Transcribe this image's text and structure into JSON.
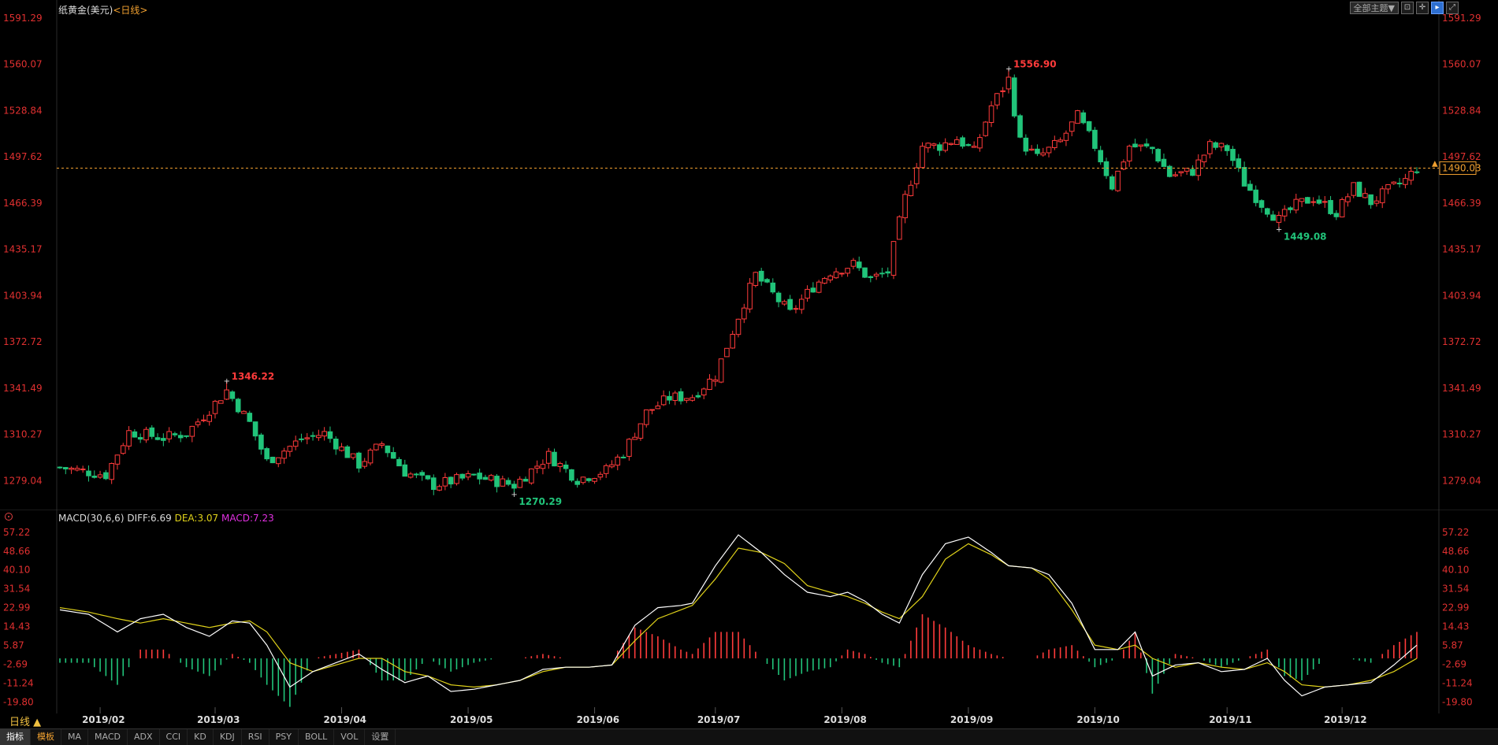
{
  "header": {
    "title": "纸黄金(美元)",
    "period": "<日线>",
    "theme_button": "全部主题▼",
    "icons": [
      "fit-icon",
      "crosshair-icon",
      "cursor-icon",
      "fullscreen-icon"
    ]
  },
  "colors": {
    "up": "#ff3b3b",
    "down": "#21c47a",
    "axis_price": "#e03030",
    "dif": "#ffffff",
    "dea": "#e0d21a",
    "ref_line": "#f0a030",
    "bg": "#000000"
  },
  "macd": {
    "label": "MACD(30,6,6)",
    "diff": "DIFF:6.69",
    "dea": "DEA:3.07",
    "macd": "MACD:7.23"
  },
  "period_toggle": "日线 ▲",
  "bottom_tabs": [
    "指标",
    "模板",
    "MA",
    "MACD",
    "ADX",
    "CCI",
    "KD",
    "KDJ",
    "RSI",
    "PSY",
    "BOLL",
    "VOL",
    "设置"
  ],
  "chart_data": [
    {
      "type": "candlestick",
      "title": "纸黄金(美元)",
      "ylim": [
        1259.0,
        1591.29
      ],
      "y_ticks": [
        "1591.29",
        "1560.07",
        "1528.84",
        "1497.62",
        "1466.39",
        "1435.17",
        "1403.94",
        "1372.72",
        "1341.49",
        "1310.27",
        "1279.04"
      ],
      "x_ticks": [
        "2019/02",
        "2019/03",
        "2019/04",
        "2019/05",
        "2019/06",
        "2019/07",
        "2019/08",
        "2019/09",
        "2019/10",
        "2019/11",
        "2019/12"
      ],
      "x_tick_positions": [
        7,
        27,
        49,
        71,
        93,
        114,
        136,
        158,
        180,
        203,
        223
      ],
      "annotations": [
        {
          "label": "1346.22",
          "index": 29,
          "value": 1346.22,
          "kind": "high"
        },
        {
          "label": "1270.29",
          "index": 79,
          "value": 1270.29,
          "kind": "low"
        },
        {
          "label": "1556.90",
          "index": 165,
          "value": 1556.9,
          "kind": "high"
        },
        {
          "label": "1449.08",
          "index": 212,
          "value": 1449.08,
          "kind": "low"
        }
      ],
      "last_price": "1490.03",
      "reference_line": 1490.03,
      "key_points": [
        [
          0,
          1288
        ],
        [
          8,
          1283
        ],
        [
          12,
          1312
        ],
        [
          18,
          1308
        ],
        [
          22,
          1311
        ],
        [
          26,
          1327
        ],
        [
          29,
          1340
        ],
        [
          33,
          1318
        ],
        [
          36,
          1292
        ],
        [
          42,
          1307
        ],
        [
          46,
          1311
        ],
        [
          52,
          1290
        ],
        [
          56,
          1304
        ],
        [
          60,
          1285
        ],
        [
          65,
          1276
        ],
        [
          72,
          1282
        ],
        [
          79,
          1276
        ],
        [
          85,
          1296
        ],
        [
          90,
          1280
        ],
        [
          95,
          1286
        ],
        [
          98,
          1298
        ],
        [
          102,
          1325
        ],
        [
          106,
          1335
        ],
        [
          110,
          1336
        ],
        [
          114,
          1350
        ],
        [
          118,
          1390
        ],
        [
          121,
          1418
        ],
        [
          124,
          1405
        ],
        [
          127,
          1392
        ],
        [
          131,
          1410
        ],
        [
          134,
          1420
        ],
        [
          138,
          1425
        ],
        [
          141,
          1415
        ],
        [
          144,
          1420
        ],
        [
          147,
          1470
        ],
        [
          150,
          1505
        ],
        [
          153,
          1505
        ],
        [
          156,
          1510
        ],
        [
          159,
          1501
        ],
        [
          162,
          1532
        ],
        [
          165,
          1550
        ],
        [
          167,
          1508
        ],
        [
          170,
          1497
        ],
        [
          174,
          1508
        ],
        [
          177,
          1525
        ],
        [
          180,
          1505
        ],
        [
          183,
          1478
        ],
        [
          186,
          1505
        ],
        [
          190,
          1503
        ],
        [
          193,
          1485
        ],
        [
          197,
          1488
        ],
        [
          200,
          1505
        ],
        [
          203,
          1503
        ],
        [
          206,
          1480
        ],
        [
          209,
          1466
        ],
        [
          212,
          1455
        ],
        [
          215,
          1465
        ],
        [
          218,
          1470
        ],
        [
          222,
          1460
        ],
        [
          225,
          1477
        ],
        [
          228,
          1467
        ],
        [
          231,
          1475
        ],
        [
          234,
          1482
        ],
        [
          236,
          1490
        ]
      ]
    },
    {
      "type": "macd",
      "ylim": [
        -25.0,
        60.0
      ],
      "y_ticks": [
        "57.22",
        "48.66",
        "40.10",
        "31.54",
        "22.99",
        "14.43",
        "5.87",
        "-2.69",
        "-11.24",
        "-19.80"
      ],
      "series": [
        {
          "name": "DIFF",
          "key_points": [
            [
              0,
              22
            ],
            [
              5,
              20
            ],
            [
              10,
              12
            ],
            [
              14,
              18
            ],
            [
              18,
              20
            ],
            [
              22,
              14
            ],
            [
              26,
              10
            ],
            [
              30,
              17
            ],
            [
              33,
              16
            ],
            [
              36,
              6
            ],
            [
              40,
              -13
            ],
            [
              44,
              -6
            ],
            [
              48,
              -2
            ],
            [
              52,
              2
            ],
            [
              56,
              -5
            ],
            [
              60,
              -11
            ],
            [
              64,
              -8
            ],
            [
              68,
              -15
            ],
            [
              72,
              -14
            ],
            [
              76,
              -12
            ],
            [
              80,
              -10
            ],
            [
              84,
              -5
            ],
            [
              88,
              -4
            ],
            [
              92,
              -4
            ],
            [
              96,
              -3
            ],
            [
              100,
              15
            ],
            [
              104,
              23
            ],
            [
              108,
              24
            ],
            [
              110,
              25
            ],
            [
              114,
              42
            ],
            [
              118,
              56
            ],
            [
              122,
              48
            ],
            [
              126,
              38
            ],
            [
              130,
              30
            ],
            [
              134,
              28
            ],
            [
              137,
              30
            ],
            [
              140,
              26
            ],
            [
              143,
              20
            ],
            [
              146,
              16
            ],
            [
              150,
              38
            ],
            [
              154,
              52
            ],
            [
              158,
              55
            ],
            [
              162,
              48
            ],
            [
              165,
              42
            ],
            [
              169,
              41
            ],
            [
              172,
              38
            ],
            [
              176,
              25
            ],
            [
              180,
              4
            ],
            [
              184,
              4
            ],
            [
              187,
              12
            ],
            [
              190,
              -8
            ],
            [
              194,
              -3
            ],
            [
              198,
              -2
            ],
            [
              202,
              -6
            ],
            [
              206,
              -5
            ],
            [
              210,
              0
            ],
            [
              213,
              -10
            ],
            [
              216,
              -17
            ],
            [
              220,
              -13
            ],
            [
              224,
              -12
            ],
            [
              228,
              -11
            ],
            [
              232,
              -3
            ],
            [
              236,
              6
            ]
          ]
        },
        {
          "name": "DEA",
          "key_points": [
            [
              0,
              23
            ],
            [
              5,
              21
            ],
            [
              10,
              18
            ],
            [
              14,
              16
            ],
            [
              18,
              18
            ],
            [
              22,
              16
            ],
            [
              26,
              14
            ],
            [
              30,
              16
            ],
            [
              33,
              17
            ],
            [
              36,
              12
            ],
            [
              40,
              -2
            ],
            [
              44,
              -6
            ],
            [
              48,
              -3
            ],
            [
              52,
              0
            ],
            [
              56,
              0
            ],
            [
              60,
              -6
            ],
            [
              64,
              -8
            ],
            [
              68,
              -12
            ],
            [
              72,
              -13
            ],
            [
              76,
              -12
            ],
            [
              80,
              -10
            ],
            [
              84,
              -6
            ],
            [
              88,
              -4
            ],
            [
              92,
              -4
            ],
            [
              96,
              -3
            ],
            [
              100,
              8
            ],
            [
              104,
              18
            ],
            [
              108,
              22
            ],
            [
              110,
              24
            ],
            [
              114,
              36
            ],
            [
              118,
              50
            ],
            [
              122,
              48
            ],
            [
              126,
              43
            ],
            [
              130,
              33
            ],
            [
              134,
              30
            ],
            [
              137,
              28
            ],
            [
              140,
              25
            ],
            [
              143,
              21
            ],
            [
              146,
              18
            ],
            [
              150,
              28
            ],
            [
              154,
              45
            ],
            [
              158,
              52
            ],
            [
              162,
              47
            ],
            [
              165,
              42
            ],
            [
              169,
              41
            ],
            [
              172,
              36
            ],
            [
              176,
              22
            ],
            [
              180,
              6
            ],
            [
              184,
              4
            ],
            [
              187,
              6
            ],
            [
              190,
              0
            ],
            [
              194,
              -4
            ],
            [
              198,
              -2
            ],
            [
              202,
              -4
            ],
            [
              206,
              -5
            ],
            [
              210,
              -2
            ],
            [
              213,
              -6
            ],
            [
              216,
              -12
            ],
            [
              220,
              -13
            ],
            [
              224,
              -12
            ],
            [
              228,
              -10
            ],
            [
              232,
              -6
            ],
            [
              236,
              0
            ]
          ]
        }
      ]
    }
  ]
}
